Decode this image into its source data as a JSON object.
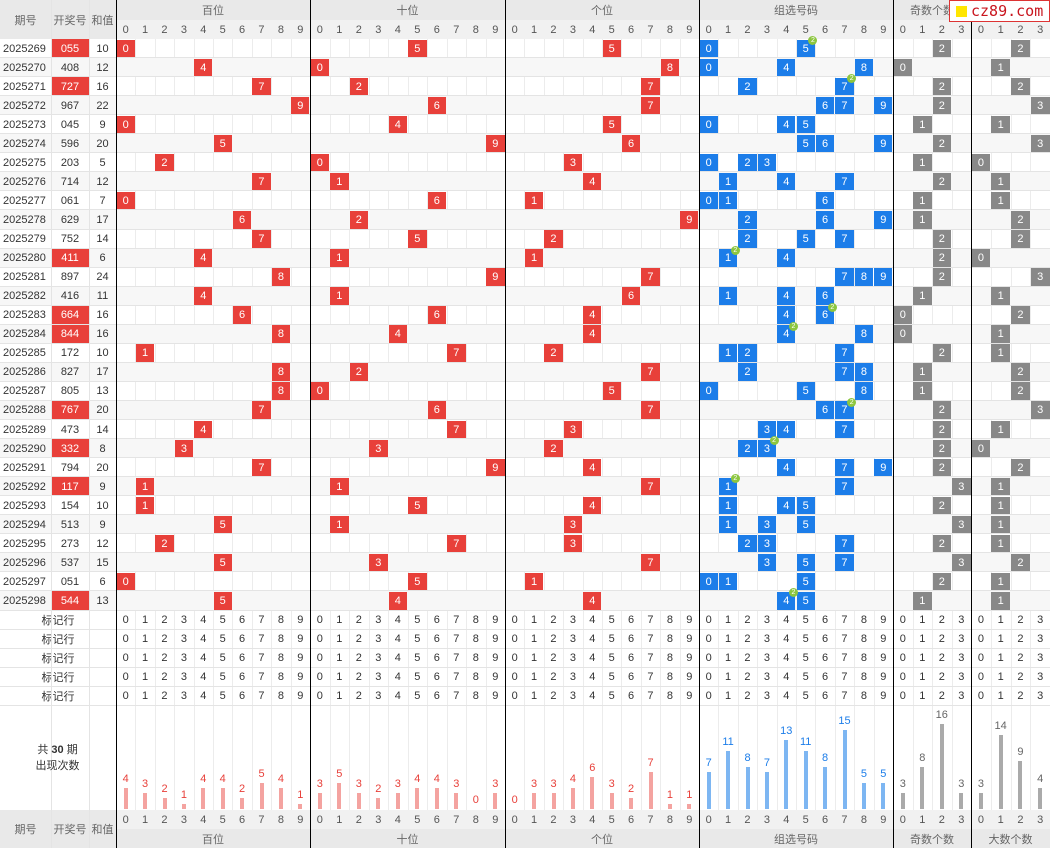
{
  "header": {
    "period": "期号",
    "number": "开奖号",
    "sum": "和值",
    "groups": [
      "百位",
      "十位",
      "个位",
      "组选号码",
      "奇数个数",
      "大数个数"
    ],
    "group3_short": "奇数个数"
  },
  "digits": [
    "0",
    "1",
    "2",
    "3",
    "4",
    "5",
    "6",
    "7",
    "8",
    "9"
  ],
  "count_digits": [
    "0",
    "1",
    "2",
    "3"
  ],
  "rows": [
    {
      "p": "2025269",
      "n": "055",
      "s": "10",
      "h": true
    },
    {
      "p": "2025270",
      "n": "408",
      "s": "12",
      "h": false
    },
    {
      "p": "2025271",
      "n": "727",
      "s": "16",
      "h": true
    },
    {
      "p": "2025272",
      "n": "967",
      "s": "22",
      "h": false
    },
    {
      "p": "2025273",
      "n": "045",
      "s": "9",
      "h": false
    },
    {
      "p": "2025274",
      "n": "596",
      "s": "20",
      "h": false
    },
    {
      "p": "2025275",
      "n": "203",
      "s": "5",
      "h": false
    },
    {
      "p": "2025276",
      "n": "714",
      "s": "12",
      "h": false
    },
    {
      "p": "2025277",
      "n": "061",
      "s": "7",
      "h": false
    },
    {
      "p": "2025278",
      "n": "629",
      "s": "17",
      "h": false
    },
    {
      "p": "2025279",
      "n": "752",
      "s": "14",
      "h": false
    },
    {
      "p": "2025280",
      "n": "411",
      "s": "6",
      "h": true
    },
    {
      "p": "2025281",
      "n": "897",
      "s": "24",
      "h": false
    },
    {
      "p": "2025282",
      "n": "416",
      "s": "11",
      "h": false
    },
    {
      "p": "2025283",
      "n": "664",
      "s": "16",
      "h": true
    },
    {
      "p": "2025284",
      "n": "844",
      "s": "16",
      "h": true
    },
    {
      "p": "2025285",
      "n": "172",
      "s": "10",
      "h": false
    },
    {
      "p": "2025286",
      "n": "827",
      "s": "17",
      "h": false
    },
    {
      "p": "2025287",
      "n": "805",
      "s": "13",
      "h": false
    },
    {
      "p": "2025288",
      "n": "767",
      "s": "20",
      "h": true
    },
    {
      "p": "2025289",
      "n": "473",
      "s": "14",
      "h": false
    },
    {
      "p": "2025290",
      "n": "332",
      "s": "8",
      "h": true
    },
    {
      "p": "2025291",
      "n": "794",
      "s": "20",
      "h": false
    },
    {
      "p": "2025292",
      "n": "117",
      "s": "9",
      "h": true
    },
    {
      "p": "2025293",
      "n": "154",
      "s": "10",
      "h": false
    },
    {
      "p": "2025294",
      "n": "513",
      "s": "9",
      "h": false
    },
    {
      "p": "2025295",
      "n": "273",
      "s": "12",
      "h": false
    },
    {
      "p": "2025296",
      "n": "537",
      "s": "15",
      "h": false
    },
    {
      "p": "2025297",
      "n": "051",
      "s": "6",
      "h": false
    },
    {
      "p": "2025298",
      "n": "544",
      "s": "13",
      "h": true
    }
  ],
  "marker_label": "标记行",
  "marker_rows": 5,
  "stats": {
    "prefix": "共",
    "count": "30",
    "suffix": "期",
    "subtitle": "出现次数"
  },
  "chart_data": {
    "type": "bar",
    "categories": [
      "0",
      "1",
      "2",
      "3",
      "4",
      "5",
      "6",
      "7",
      "8",
      "9"
    ],
    "groups": [
      {
        "name": "百位",
        "values": [
          4,
          3,
          2,
          1,
          4,
          4,
          2,
          5,
          4,
          1
        ]
      },
      {
        "name": "十位",
        "values": [
          3,
          5,
          3,
          2,
          3,
          4,
          4,
          3,
          0,
          3
        ]
      },
      {
        "name": "个位",
        "values": [
          0,
          3,
          3,
          4,
          6,
          3,
          2,
          7,
          1,
          1
        ]
      },
      {
        "name": "组选号码",
        "values": [
          7,
          11,
          8,
          7,
          13,
          11,
          8,
          15,
          5,
          5
        ]
      },
      {
        "name": "奇数个数",
        "categories": [
          "0",
          "1",
          "2",
          "3"
        ],
        "values": [
          3,
          8,
          16,
          3
        ]
      },
      {
        "name": "大数个数",
        "categories": [
          "0",
          "1",
          "2",
          "3"
        ],
        "values": [
          3,
          14,
          9,
          4
        ]
      }
    ]
  },
  "colors": {
    "pos_mark": "#e8403a",
    "group_mark": "#1c7de9",
    "count_mark": "#888888",
    "pos_bar": "#f4a3a0",
    "group_bar": "#7db6f2",
    "count_bar": "#aaaaaa",
    "badge": "#8cc63f"
  },
  "badge_label": "2",
  "logo": {
    "text": "cz89.com"
  }
}
